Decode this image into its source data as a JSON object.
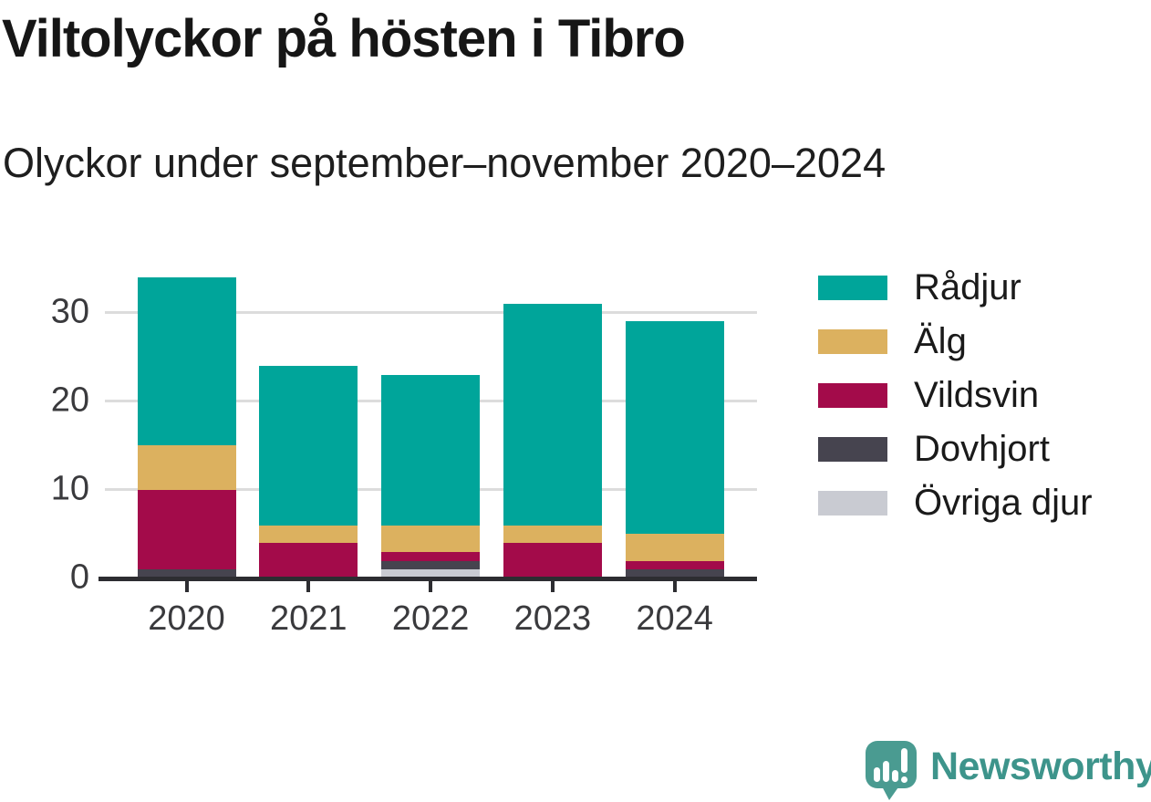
{
  "chart_data": {
    "type": "bar",
    "stacked": true,
    "title": "Viltolyckor på hösten i Tibro",
    "subtitle": "Olyckor under september–november 2020–2024",
    "categories": [
      "2020",
      "2021",
      "2022",
      "2023",
      "2024"
    ],
    "series": [
      {
        "name": "Rådjur",
        "color": "#00A59A",
        "values": [
          19,
          18,
          17,
          25,
          24
        ]
      },
      {
        "name": "Älg",
        "color": "#DCB15F",
        "values": [
          5,
          2,
          3,
          2,
          3
        ]
      },
      {
        "name": "Vildsvin",
        "color": "#A30B4A",
        "values": [
          9,
          4,
          1,
          4,
          1
        ]
      },
      {
        "name": "Dovhjort",
        "color": "#46444F",
        "values": [
          1,
          0,
          1,
          0,
          1
        ]
      },
      {
        "name": "Övriga djur",
        "color": "#C9CBD2",
        "values": [
          0,
          0,
          1,
          0,
          0
        ]
      }
    ],
    "stack_order_bottom_to_top": [
      "Övriga djur",
      "Dovhjort",
      "Vildsvin",
      "Älg",
      "Rådjur"
    ],
    "totals": [
      34,
      24,
      23,
      31,
      29
    ],
    "yticks": [
      0,
      10,
      20,
      30
    ],
    "ylim": [
      0,
      35
    ],
    "xlabel": "",
    "ylabel": "",
    "grid": true,
    "legend_position": "right"
  },
  "colors": {
    "axis": "#2d2d31",
    "gridline": "#dcdcdc",
    "tick_text": "#3a3a3d",
    "brand_teal": "#4A9B91",
    "brand_text_teal": "#3d948b"
  },
  "footer": {
    "brand": "Newsworthy"
  }
}
